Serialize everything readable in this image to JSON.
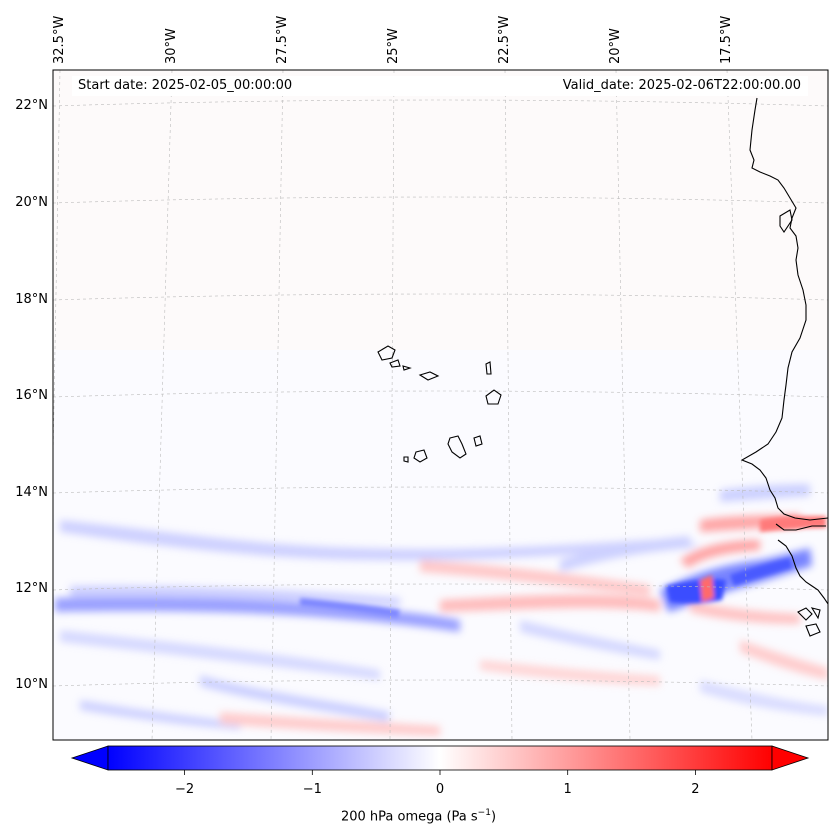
{
  "map": {
    "start_date_label": "Start date: 2025-02-05_00:00:00",
    "valid_date_label": "Valid_date: 2025-02-06T22:00:00.00",
    "longitude_labels": [
      "32.5°W",
      "30°W",
      "27.5°W",
      "25°W",
      "22.5°W",
      "20°W",
      "17.5°W"
    ],
    "latitude_labels": [
      "22°N",
      "20°N",
      "18°N",
      "16°N",
      "14°N",
      "12°N",
      "10°N"
    ],
    "features": [
      "Cape Verde islands",
      "West African coastline (Senegal, Gambia, Guinea-Bissau)"
    ]
  },
  "colorbar": {
    "label_prefix": "200 hPa omega (Pa s",
    "label_exponent": "−1",
    "label_suffix": ")",
    "ticks": [
      "−2",
      "−1",
      "0",
      "1",
      "2"
    ],
    "min": -2.6,
    "max": 2.6,
    "negative_color": "#0000ff",
    "neutral_color": "#ffffff",
    "positive_color": "#ff0000"
  }
}
